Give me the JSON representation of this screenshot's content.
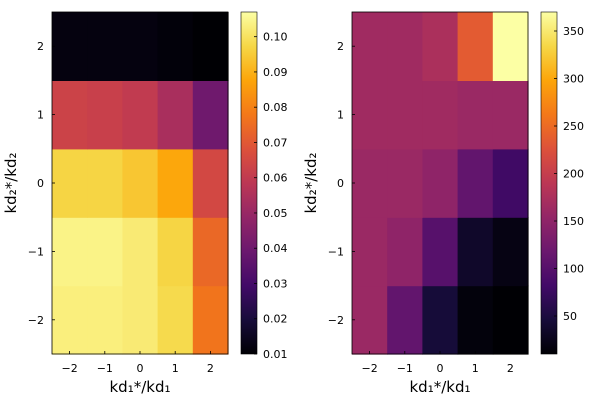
{
  "chart_data": [
    {
      "type": "heatmap",
      "panel": "left",
      "xlabel": "kd₁*/kd₁",
      "ylabel": "kd₂*/kd₂",
      "x": [
        -2,
        -1,
        0,
        1,
        2
      ],
      "y": [
        -2,
        -1,
        0,
        1,
        2
      ],
      "x_tick_labels": [
        "−2",
        "−1",
        "0",
        "1",
        "2"
      ],
      "y_tick_labels": [
        "−2",
        "−1",
        "0",
        "1",
        "2"
      ],
      "xlim": [
        -2.5,
        2.5
      ],
      "ylim": [
        -2.5,
        2.5
      ],
      "colormap": "inferno",
      "clim": [
        0.01,
        0.107
      ],
      "colorbar_ticks": [
        0.01,
        0.02,
        0.03,
        0.04,
        0.05,
        0.06,
        0.07,
        0.08,
        0.09,
        0.1
      ],
      "colorbar_tick_labels": [
        "0.01",
        "0.02",
        "0.03",
        "0.04",
        "0.05",
        "0.06",
        "0.07",
        "0.08",
        "0.09",
        "0.10"
      ],
      "z": [
        [
          0.103,
          0.103,
          0.102,
          0.098,
          0.077
        ],
        [
          0.104,
          0.104,
          0.102,
          0.097,
          0.074
        ],
        [
          0.097,
          0.097,
          0.094,
          0.088,
          0.065
        ],
        [
          0.063,
          0.062,
          0.06,
          0.054,
          0.04
        ],
        [
          0.012,
          0.012,
          0.012,
          0.011,
          0.01
        ]
      ]
    },
    {
      "type": "heatmap",
      "panel": "right",
      "xlabel": "kd₁*/kd₁",
      "ylabel": "kd₂*/kd₂",
      "x": [
        -2,
        -1,
        0,
        1,
        2
      ],
      "y": [
        -2,
        -1,
        0,
        1,
        2
      ],
      "x_tick_labels": [
        "−2",
        "−1",
        "0",
        "1",
        "2"
      ],
      "y_tick_labels": [
        "−2",
        "−1",
        "0",
        "1",
        "2"
      ],
      "xlim": [
        -2.5,
        2.5
      ],
      "ylim": [
        -2.5,
        2.5
      ],
      "colormap": "inferno",
      "clim": [
        10,
        370
      ],
      "colorbar_ticks": [
        50,
        100,
        150,
        200,
        250,
        300,
        350
      ],
      "colorbar_tick_labels": [
        "50",
        "100",
        "150",
        "200",
        "250",
        "300",
        "350"
      ],
      "z": [
        [
          160,
          110,
          45,
          15,
          10
        ],
        [
          160,
          150,
          100,
          35,
          20
        ],
        [
          160,
          160,
          150,
          110,
          80
        ],
        [
          165,
          165,
          165,
          160,
          160
        ],
        [
          165,
          165,
          175,
          235,
          370
        ]
      ]
    }
  ]
}
